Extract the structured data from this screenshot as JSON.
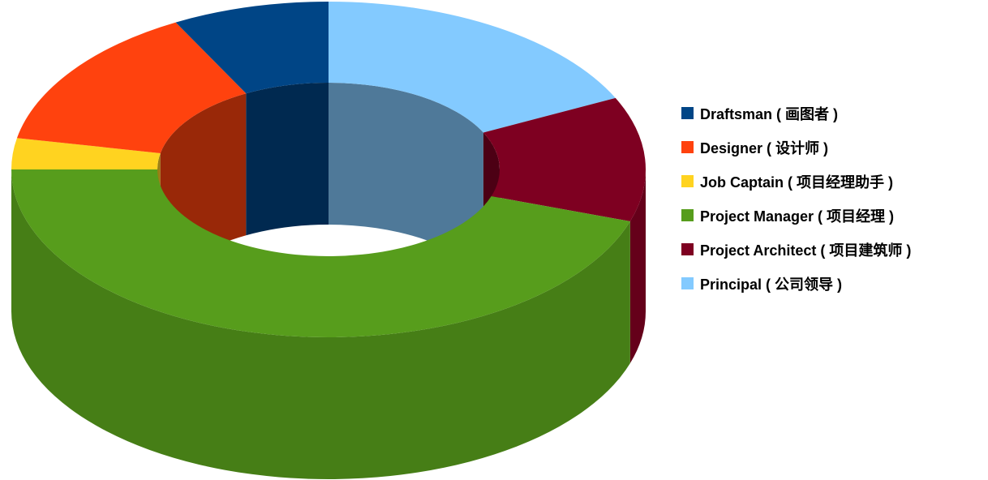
{
  "chart_data": {
    "type": "pie",
    "variant": "3d-donut",
    "title": "",
    "categories": [
      "Principal ( 公司领导 )",
      "Project Architect ( 项目建筑师 )",
      "Project Manager ( 项目经理 )",
      "Job Captain ( 项目经理助手 )",
      "Designer ( 设计师 )",
      "Draftsman ( 画图者 )"
    ],
    "values": [
      18,
      12,
      45,
      3,
      14,
      8
    ],
    "unit": "percent",
    "colors": [
      "#83caff",
      "#7e0021",
      "#579d1c",
      "#ffd320",
      "#ff420e",
      "#004586"
    ],
    "legend_position": "right",
    "legend_order": [
      5,
      4,
      3,
      2,
      1,
      0
    ]
  }
}
